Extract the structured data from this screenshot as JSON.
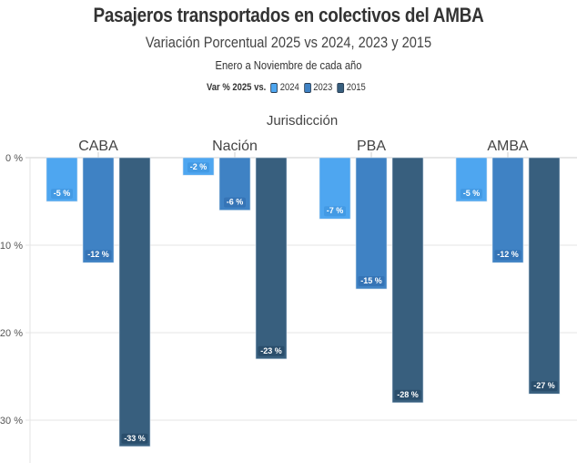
{
  "header": {
    "title": "Pasajeros transportados en colectivos del AMBA",
    "subtitle": "Variación Porcentual 2025 vs 2024, 2023 y 2015",
    "period": "Enero a Noviembre de cada año"
  },
  "legend": {
    "title": "Var % 2025 vs.",
    "items": [
      {
        "label": "2024",
        "color": "#4ea6f0"
      },
      {
        "label": "2023",
        "color": "#3f82c4"
      },
      {
        "label": "2015",
        "color": "#385f7e"
      }
    ]
  },
  "chart_data": {
    "type": "bar",
    "title": "Pasajeros transportados en colectivos del AMBA",
    "subtitle": "Variación Porcentual 2025 vs 2024, 2023 y 2015",
    "caption": "Enero a Noviembre de cada año",
    "facet_label": "Jurisdicción",
    "categories": [
      "CABA",
      "Nación",
      "PBA",
      "AMBA"
    ],
    "series": [
      {
        "name": "2024",
        "color": "#4ea6f0",
        "values": [
          -5,
          -2,
          -7,
          -5
        ]
      },
      {
        "name": "2023",
        "color": "#3f82c4",
        "values": [
          -12,
          -6,
          -15,
          -12
        ]
      },
      {
        "name": "2015",
        "color": "#385f7e",
        "values": [
          -33,
          -23,
          -28,
          -27
        ]
      }
    ],
    "data_label_suffix": " %",
    "ylabel": "",
    "xlabel": "Jurisdicción",
    "ylim": [
      -35,
      0
    ],
    "yticks": [
      0,
      -10,
      -20,
      -30
    ],
    "ytick_labels": [
      "0 %",
      "-10 %",
      "-20 %",
      "-30 %"
    ],
    "grid": true,
    "legend_position": "top"
  }
}
